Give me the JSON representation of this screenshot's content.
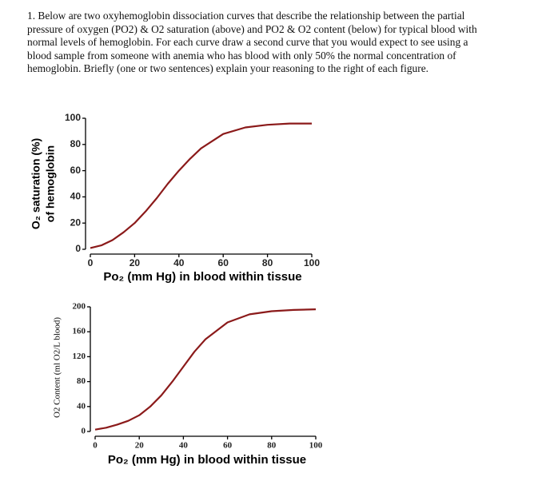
{
  "question": {
    "lines": [
      "1. Below are two oxyhemoglobin dissociation curves that describe the relationship between the partial",
      "pressure of oxygen (PO2) & O2 saturation (above) and PO2 & O2 content (below) for typical blood with",
      "normal levels of hemoglobin.  For each curve draw a second curve that you would expect to see using a",
      "blood sample from someone with anemia who has blood with only 50% the normal concentration of",
      "hemoglobin.  Briefly (one or two sentences) explain your reasoning to the right of each figure."
    ]
  },
  "chart_data": [
    {
      "type": "line",
      "ylabel": [
        "O₂ saturation (%)",
        "of hemoglobin"
      ],
      "xlabel": "Po₂ (mm Hg) in blood within tissue",
      "x": [
        0,
        5,
        10,
        15,
        20,
        25,
        30,
        35,
        40,
        45,
        50,
        60,
        70,
        80,
        90,
        100
      ],
      "series": [
        {
          "color": "#8b1a1a",
          "values": [
            1,
            3,
            7,
            13,
            20,
            29,
            39,
            50,
            60,
            69,
            77,
            88,
            93,
            95,
            96,
            96
          ]
        }
      ],
      "xlim": [
        0,
        100
      ],
      "xticks": [
        0,
        20,
        40,
        60,
        80,
        100
      ],
      "ylim": [
        0,
        100
      ],
      "yticks": [
        0,
        20,
        40,
        60,
        80,
        100
      ]
    },
    {
      "type": "line",
      "ylabel": [
        "O2 Content (ml O2/L blood)"
      ],
      "xlabel": "Po₂ (mm Hg) in blood within tissue",
      "x": [
        0,
        5,
        10,
        15,
        20,
        25,
        30,
        35,
        40,
        45,
        50,
        60,
        70,
        80,
        90,
        100
      ],
      "series": [
        {
          "color": "#8b1a1a",
          "values": [
            3,
            6,
            11,
            17,
            26,
            40,
            58,
            80,
            104,
            128,
            148,
            175,
            188,
            193,
            195,
            196
          ]
        }
      ],
      "xlim": [
        0,
        100
      ],
      "xticks": [
        0,
        20,
        40,
        60,
        80,
        100
      ],
      "ylim": [
        0,
        200
      ],
      "yticks": [
        0,
        40,
        80,
        120,
        160,
        200
      ]
    }
  ]
}
